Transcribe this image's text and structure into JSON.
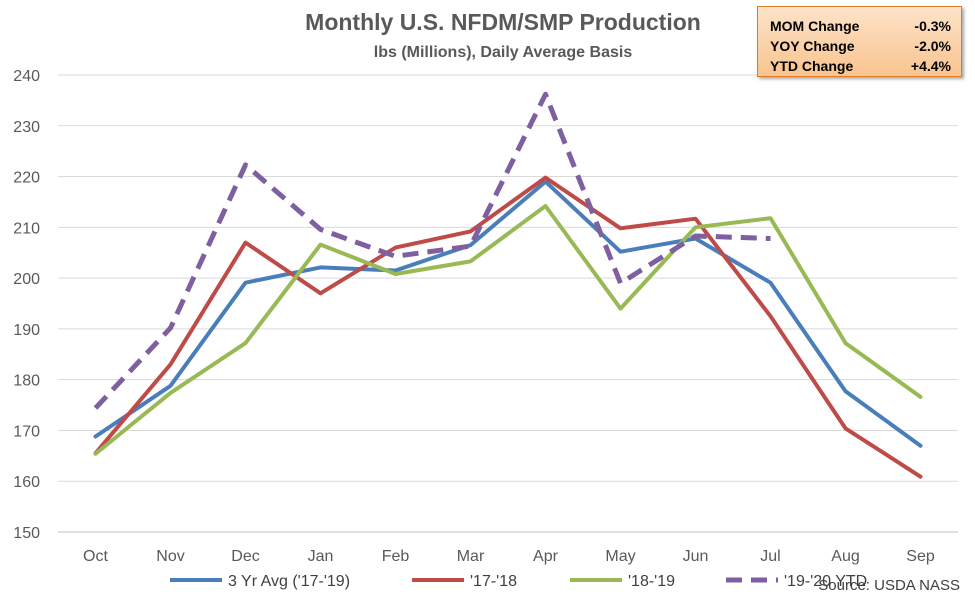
{
  "chart_data": {
    "type": "line",
    "title": "Monthly U.S. NFDM/SMP Production",
    "subtitle": "lbs (Millions), Daily Average Basis",
    "categories": [
      "Oct",
      "Nov",
      "Dec",
      "Jan",
      "Feb",
      "Mar",
      "Apr",
      "May",
      "Jun",
      "Jul",
      "Aug",
      "Sep"
    ],
    "ylim": [
      150,
      240
    ],
    "yticks": [
      150,
      160,
      170,
      180,
      190,
      200,
      210,
      220,
      230,
      240
    ],
    "grid": true,
    "legend_position": "bottom",
    "series": [
      {
        "name": "3 Yr Avg ('17-'19)",
        "color": "#4a7ebb",
        "dashed": false,
        "values": [
          168.8,
          178.8,
          199.1,
          202.1,
          201.5,
          206.5,
          219.0,
          205.2,
          207.8,
          199.1,
          177.7,
          167.0
        ]
      },
      {
        "name": "'17-'18",
        "color": "#be4b48",
        "dashed": false,
        "values": [
          165.5,
          183.0,
          207.0,
          197.0,
          206.0,
          209.2,
          219.8,
          209.8,
          211.7,
          192.5,
          170.4,
          160.9
        ]
      },
      {
        "name": "'18-'19",
        "color": "#98b954",
        "dashed": false,
        "values": [
          165.4,
          177.4,
          187.2,
          206.6,
          200.8,
          203.3,
          214.2,
          194.0,
          210.0,
          211.8,
          187.2,
          176.6
        ]
      },
      {
        "name": "'19-'20 YTD",
        "color": "#7e5fa0",
        "dashed": true,
        "values": [
          174.4,
          190.2,
          222.3,
          209.6,
          204.3,
          206.3,
          236.2,
          199.0,
          208.3,
          207.8,
          null,
          null
        ]
      }
    ],
    "source": "Source: USDA NASS"
  },
  "stats": [
    {
      "label": "MOM Change",
      "value": "-0.3%"
    },
    {
      "label": "YOY Change",
      "value": "-2.0%"
    },
    {
      "label": "YTD Change",
      "value": "+4.4%"
    }
  ]
}
